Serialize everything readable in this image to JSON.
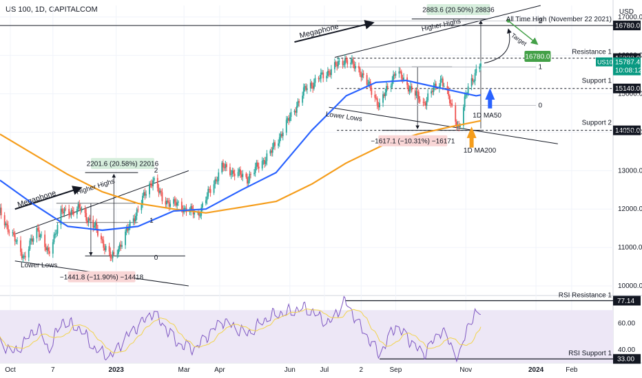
{
  "header": {
    "title": "US 100, 1D, CAPITALCOM",
    "currency": "USD"
  },
  "colors": {
    "up": "#26a69a",
    "down": "#ef5350",
    "ma50": "#2962ff",
    "ma200": "#f59d1b",
    "rsi": "#7e57c2",
    "rsi_ma": "#f2d34a",
    "rsi_band": "#ede7f6",
    "green_box": "#43a047",
    "teal_box": "#089981",
    "pos_fill": "#d6eedc",
    "neg_fill": "#f9d6d6"
  },
  "chart_data": {
    "type": "candlestick",
    "x_range": [
      "2022-09-22",
      "2024-03-08"
    ],
    "y_range": [
      9750,
      17300
    ],
    "x_ticks": [
      {
        "label": "Oct",
        "date": "2022-10-01"
      },
      {
        "label": "7",
        "date": "2022-11-07"
      },
      {
        "label": "2023",
        "date": "2023-01-01"
      },
      {
        "label": "Mar",
        "date": "2023-03-01"
      },
      {
        "label": "Apr",
        "date": "2023-04-01"
      },
      {
        "label": "Jun",
        "date": "2023-06-01"
      },
      {
        "label": "Jul",
        "date": "2023-07-01"
      },
      {
        "label": "2",
        "date": "2023-08-02"
      },
      {
        "label": "Sep",
        "date": "2023-09-01"
      },
      {
        "label": "Nov",
        "date": "2023-11-01"
      },
      {
        "label": "2024",
        "date": "2024-01-01"
      },
      {
        "label": "Feb",
        "date": "2024-02-01"
      }
    ],
    "y_ticks": [
      10000,
      11000,
      12000,
      13000,
      14000,
      15000,
      16000,
      17000
    ],
    "anchors": [
      [
        "2022-09-22",
        11900
      ],
      [
        "2022-10-13",
        10750
      ],
      [
        "2022-10-25",
        11500
      ],
      [
        "2022-11-03",
        10800
      ],
      [
        "2022-11-14",
        11900
      ],
      [
        "2022-12-01",
        12000
      ],
      [
        "2022-12-14",
        11500
      ],
      [
        "2022-12-28",
        10700
      ],
      [
        "2023-01-06",
        11150
      ],
      [
        "2023-02-02",
        12800
      ],
      [
        "2023-02-10",
        12250
      ],
      [
        "2023-02-24",
        12100
      ],
      [
        "2023-03-13",
        11850
      ],
      [
        "2023-04-03",
        13100
      ],
      [
        "2023-04-25",
        12800
      ],
      [
        "2023-05-16",
        13500
      ],
      [
        "2023-06-15",
        15150
      ],
      [
        "2023-07-19",
        15900
      ],
      [
        "2023-08-01",
        15600
      ],
      [
        "2023-08-18",
        14700
      ],
      [
        "2023-09-01",
        15600
      ],
      [
        "2023-09-25",
        14750
      ],
      [
        "2023-10-11",
        15400
      ],
      [
        "2023-10-26",
        14100
      ],
      [
        "2023-11-03",
        15200
      ],
      [
        "2023-11-14",
        15787
      ]
    ],
    "ma50": [
      [
        "2022-09-22",
        12750
      ],
      [
        "2022-10-20",
        12150
      ],
      [
        "2022-11-20",
        11550
      ],
      [
        "2022-12-20",
        11450
      ],
      [
        "2023-01-20",
        11550
      ],
      [
        "2023-02-20",
        11950
      ],
      [
        "2023-03-20",
        12000
      ],
      [
        "2023-04-20",
        12500
      ],
      [
        "2023-05-20",
        12950
      ],
      [
        "2023-06-20",
        14050
      ],
      [
        "2023-07-20",
        14950
      ],
      [
        "2023-08-15",
        15300
      ],
      [
        "2023-09-10",
        15350
      ],
      [
        "2023-10-10",
        15150
      ],
      [
        "2023-11-10",
        14950
      ],
      [
        "2023-11-14",
        14970
      ]
    ],
    "ma200": [
      [
        "2022-09-22",
        13950
      ],
      [
        "2022-10-20",
        13450
      ],
      [
        "2022-11-20",
        12900
      ],
      [
        "2022-12-20",
        12450
      ],
      [
        "2023-01-20",
        12150
      ],
      [
        "2023-02-20",
        12000
      ],
      [
        "2023-03-20",
        11900
      ],
      [
        "2023-04-20",
        12050
      ],
      [
        "2023-05-20",
        12200
      ],
      [
        "2023-06-20",
        12650
      ],
      [
        "2023-07-20",
        13200
      ],
      [
        "2023-08-20",
        13650
      ],
      [
        "2023-09-20",
        13950
      ],
      [
        "2023-10-20",
        14150
      ],
      [
        "2023-11-14",
        14300
      ]
    ],
    "rsi": {
      "y_range": [
        30,
        80
      ],
      "y_ticks": [
        40.0,
        60.0
      ],
      "anchors": [
        [
          "2022-09-22",
          45
        ],
        [
          "2022-10-05",
          38
        ],
        [
          "2022-10-25",
          58
        ],
        [
          "2022-11-03",
          40
        ],
        [
          "2022-11-15",
          62
        ],
        [
          "2022-12-01",
          56
        ],
        [
          "2022-12-14",
          40
        ],
        [
          "2022-12-28",
          35
        ],
        [
          "2023-01-10",
          50
        ],
        [
          "2023-02-02",
          68
        ],
        [
          "2023-02-24",
          44
        ],
        [
          "2023-03-10",
          40
        ],
        [
          "2023-04-03",
          62
        ],
        [
          "2023-04-25",
          52
        ],
        [
          "2023-05-15",
          66
        ],
        [
          "2023-06-15",
          72
        ],
        [
          "2023-07-05",
          60
        ],
        [
          "2023-07-19",
          77
        ],
        [
          "2023-08-03",
          55
        ],
        [
          "2023-08-18",
          36
        ],
        [
          "2023-09-01",
          58
        ],
        [
          "2023-09-25",
          36
        ],
        [
          "2023-10-11",
          55
        ],
        [
          "2023-10-26",
          33
        ],
        [
          "2023-11-03",
          60
        ],
        [
          "2023-11-14",
          70
        ]
      ],
      "levels": [
        {
          "label": "RSI Resistance 1",
          "value": 77.14
        },
        {
          "label": "RSI Support 1",
          "value": 33.0
        }
      ]
    },
    "levels": [
      {
        "label": "All Time High (November 22 2021)",
        "value": 16780.0,
        "price_label": "16780.0"
      },
      {
        "label": "Resistance 1",
        "value": 15930.0,
        "price_label": "15930.0"
      },
      {
        "label": "Support 1",
        "value": 15140.0,
        "price_label": "15140.0"
      },
      {
        "label": "Support 2",
        "value": 14050.0,
        "price_label": "14050.0"
      }
    ],
    "last_price": {
      "symbol": "US100",
      "value": 15787.4,
      "price_label": "15787.4",
      "countdown": "10:08:12"
    },
    "target_label": "16780.0",
    "annotations": {
      "megaphone": "Megaphone",
      "higher_highs": "Higher Highs",
      "lower_lows": "Lower Lows",
      "target": "Target",
      "ma50": "1D MA50",
      "ma200": "1D MA200",
      "fib_0": "0",
      "fib_1": "1",
      "fib_2": "2",
      "measure_2022_up": "2201.6 (20.58%) 22016",
      "measure_2022_down": "−1441.8 (−11.90%) −14418",
      "measure_2023_up": "2883.6 (20.50%) 28836",
      "measure_2023_down": "−1617.1 (−10.31%) −16171"
    }
  }
}
